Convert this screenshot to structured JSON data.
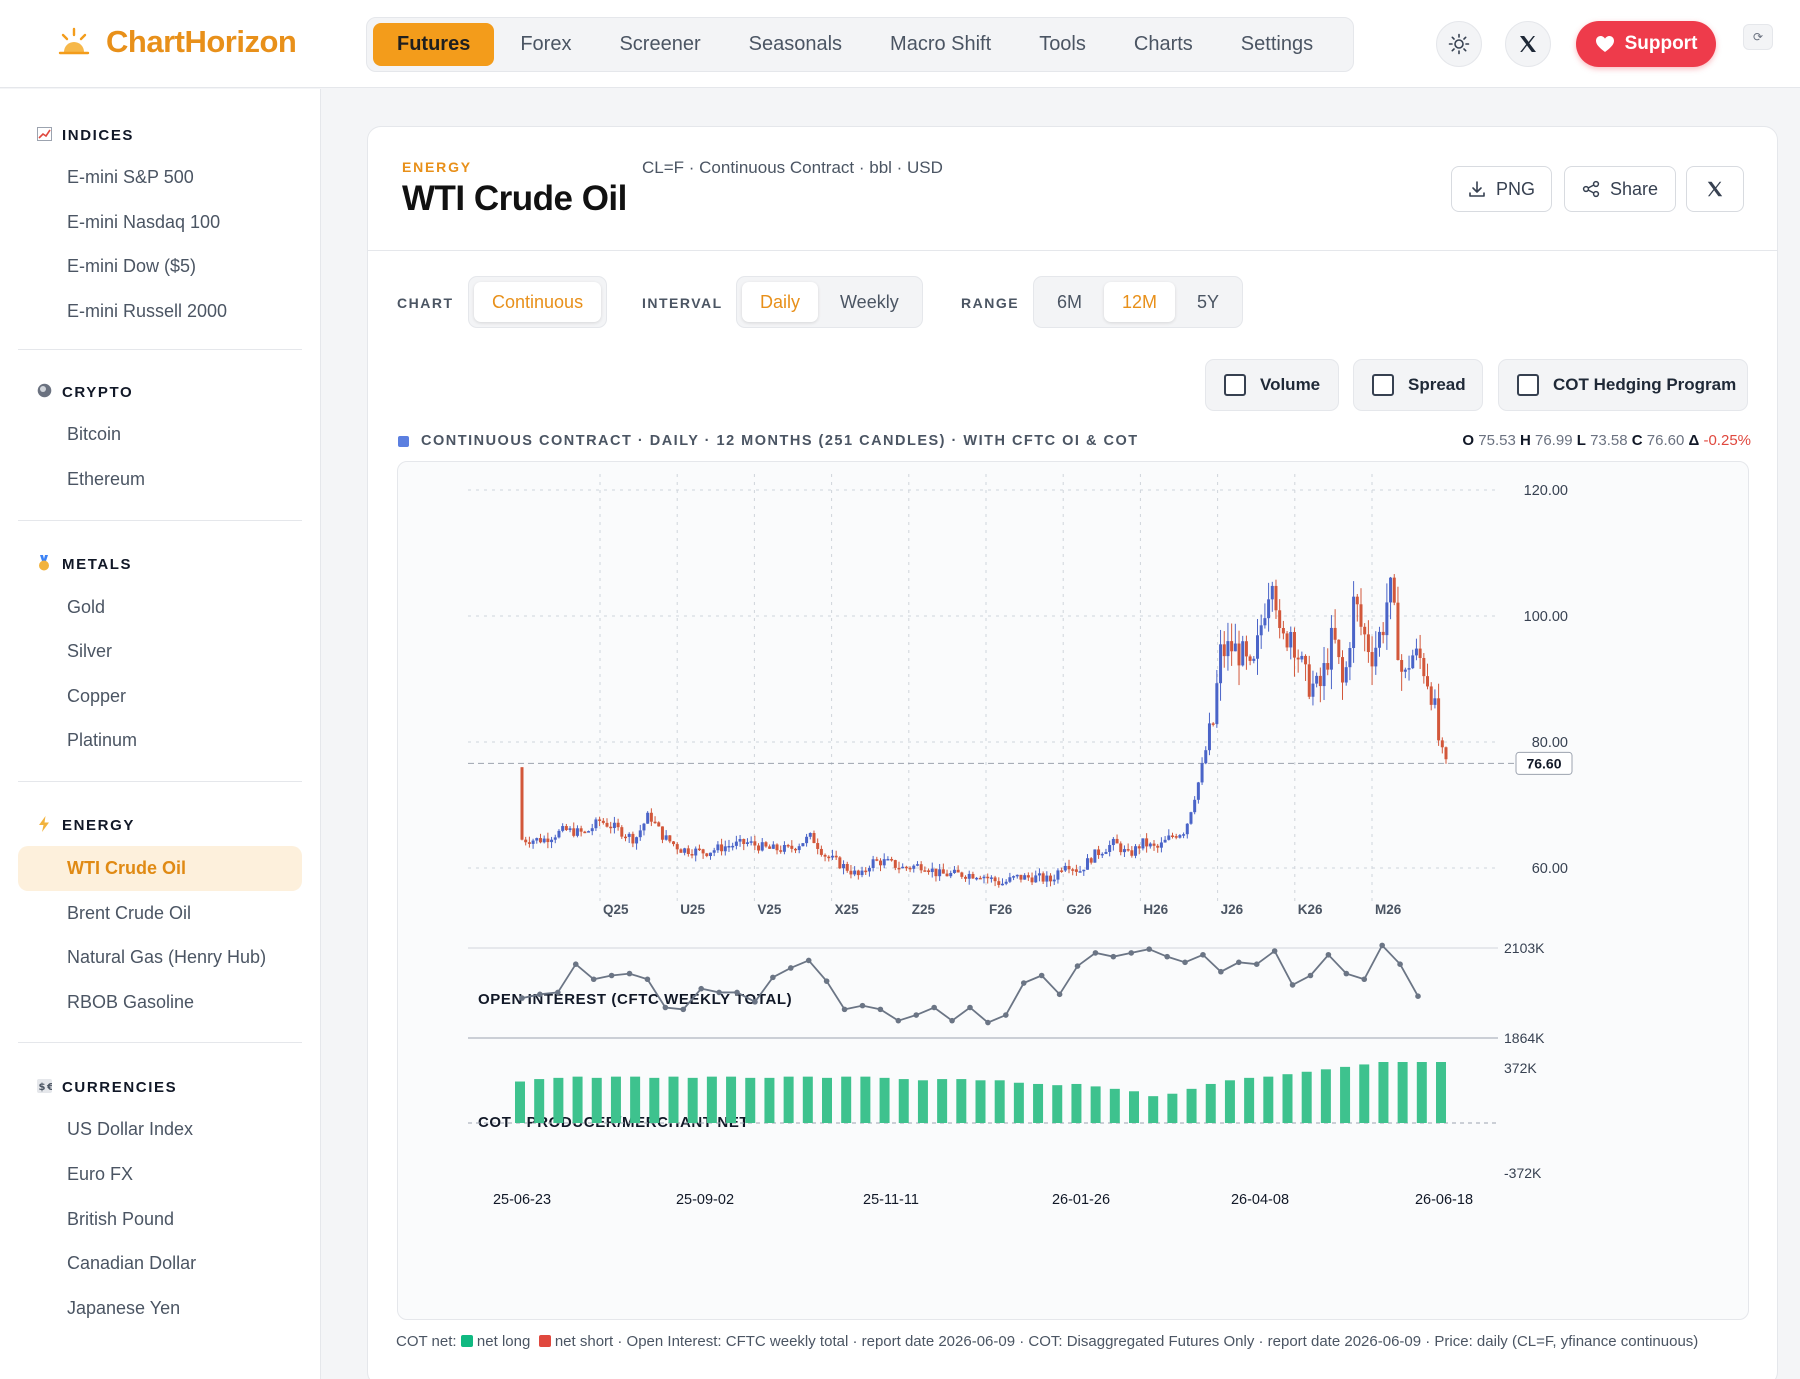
{
  "app": {
    "name": "ChartHorizon"
  },
  "nav": {
    "items": [
      "Futures",
      "Forex",
      "Screener",
      "Seasonals",
      "Macro Shift",
      "Tools",
      "Charts",
      "Settings"
    ],
    "active": "Futures"
  },
  "header": {
    "support_label": "Support"
  },
  "sidebar": {
    "sections": [
      {
        "title": "INDICES",
        "icon": "chart-icon",
        "items": [
          "E-mini S&P 500",
          "E-mini Nasdaq 100",
          "E-mini Dow ($5)",
          "E-mini Russell 2000"
        ]
      },
      {
        "title": "CRYPTO",
        "icon": "coin-icon",
        "items": [
          "Bitcoin",
          "Ethereum"
        ]
      },
      {
        "title": "METALS",
        "icon": "medal-icon",
        "items": [
          "Gold",
          "Silver",
          "Copper",
          "Platinum"
        ]
      },
      {
        "title": "ENERGY",
        "icon": "bolt-icon",
        "items": [
          "WTI Crude Oil",
          "Brent Crude Oil",
          "Natural Gas (Henry Hub)",
          "RBOB Gasoline"
        ],
        "active": "WTI Crude Oil"
      },
      {
        "title": "CURRENCIES",
        "icon": "exchange-icon",
        "items": [
          "US Dollar Index",
          "Euro FX",
          "British Pound",
          "Canadian Dollar",
          "Japanese Yen"
        ]
      }
    ]
  },
  "instrument": {
    "category": "ENERGY",
    "name": "WTI Crude Oil",
    "subtitle": "CL=F · Continuous Contract · bbl · USD"
  },
  "actions": {
    "png": "PNG",
    "share": "Share"
  },
  "controls": {
    "chart_label": "CHART",
    "chart_options": [
      "Continuous"
    ],
    "chart_selected": "Continuous",
    "interval_label": "INTERVAL",
    "interval_options": [
      "Daily",
      "Weekly"
    ],
    "interval_selected": "Daily",
    "range_label": "RANGE",
    "range_options": [
      "6M",
      "12M",
      "5Y"
    ],
    "range_selected": "12M",
    "toggles": [
      {
        "label": "Volume",
        "checked": false
      },
      {
        "label": "Spread",
        "checked": false
      },
      {
        "label": "COT Hedging Program",
        "checked": false
      }
    ]
  },
  "legend": {
    "text": "CONTINUOUS CONTRACT · DAILY · 12 MONTHS (251 CANDLES) · WITH CFTC OI & COT",
    "color": "#5b7fe0"
  },
  "ohlc": {
    "o_label": "O",
    "o": "75.53",
    "h_label": "H",
    "h": "76.99",
    "l_label": "L",
    "l": "73.58",
    "c_label": "C",
    "c": "76.60",
    "d_label": "Δ",
    "change": "-0.25%"
  },
  "chart_data": [
    {
      "type": "candlestick",
      "y_ticks": [
        "120.00",
        "100.00",
        "80.00",
        "60.00"
      ],
      "ylim": [
        56,
        123
      ],
      "last_price": "76.60",
      "contract_labels": [
        "Q25",
        "U25",
        "V25",
        "X25",
        "Z25",
        "F26",
        "G26",
        "H26",
        "J26",
        "K26",
        "M26"
      ],
      "close_path": [
        {
          "x": 0,
          "y": 76
        },
        {
          "x": 1,
          "y": 64.5
        },
        {
          "x": 6,
          "y": 64.5
        },
        {
          "x": 12,
          "y": 66
        },
        {
          "x": 18,
          "y": 65.5
        },
        {
          "x": 22,
          "y": 67.5
        },
        {
          "x": 26,
          "y": 66.5
        },
        {
          "x": 32,
          "y": 64.5
        },
        {
          "x": 36,
          "y": 68.5
        },
        {
          "x": 40,
          "y": 65
        },
        {
          "x": 45,
          "y": 63
        },
        {
          "x": 52,
          "y": 62.5
        },
        {
          "x": 58,
          "y": 63.5
        },
        {
          "x": 64,
          "y": 64
        },
        {
          "x": 70,
          "y": 63
        },
        {
          "x": 76,
          "y": 63
        },
        {
          "x": 82,
          "y": 65
        },
        {
          "x": 86,
          "y": 62
        },
        {
          "x": 92,
          "y": 60
        },
        {
          "x": 96,
          "y": 58.5
        },
        {
          "x": 99,
          "y": 61
        },
        {
          "x": 103,
          "y": 61
        },
        {
          "x": 108,
          "y": 60
        },
        {
          "x": 114,
          "y": 60.5
        },
        {
          "x": 118,
          "y": 59
        },
        {
          "x": 124,
          "y": 59
        },
        {
          "x": 130,
          "y": 59
        },
        {
          "x": 136,
          "y": 57.5
        },
        {
          "x": 140,
          "y": 58.5
        },
        {
          "x": 146,
          "y": 58.5
        },
        {
          "x": 150,
          "y": 58
        },
        {
          "x": 154,
          "y": 61
        },
        {
          "x": 158,
          "y": 59.5
        },
        {
          "x": 162,
          "y": 62
        },
        {
          "x": 168,
          "y": 64
        },
        {
          "x": 172,
          "y": 62
        },
        {
          "x": 176,
          "y": 64
        },
        {
          "x": 180,
          "y": 63
        },
        {
          "x": 184,
          "y": 65
        },
        {
          "x": 188,
          "y": 66
        },
        {
          "x": 192,
          "y": 74
        },
        {
          "x": 194,
          "y": 79
        },
        {
          "x": 196,
          "y": 83
        },
        {
          "x": 198,
          "y": 94
        },
        {
          "x": 201,
          "y": 95
        },
        {
          "x": 204,
          "y": 94
        },
        {
          "x": 207,
          "y": 90
        },
        {
          "x": 210,
          "y": 100
        },
        {
          "x": 213,
          "y": 108
        },
        {
          "x": 215,
          "y": 95
        },
        {
          "x": 218,
          "y": 98
        },
        {
          "x": 222,
          "y": 90
        },
        {
          "x": 226,
          "y": 88
        },
        {
          "x": 230,
          "y": 97
        },
        {
          "x": 233,
          "y": 88
        },
        {
          "x": 236,
          "y": 103
        },
        {
          "x": 238,
          "y": 98
        },
        {
          "x": 241,
          "y": 94
        },
        {
          "x": 244,
          "y": 98
        },
        {
          "x": 246,
          "y": 105
        },
        {
          "x": 248,
          "y": 97
        },
        {
          "x": 250,
          "y": 89
        },
        {
          "x": 252,
          "y": 94
        },
        {
          "x": 255,
          "y": 93
        },
        {
          "x": 258,
          "y": 88
        },
        {
          "x": 260,
          "y": 80
        },
        {
          "x": 262,
          "y": 76.6
        }
      ],
      "x_extent": [
        0,
        262
      ]
    },
    {
      "type": "line",
      "title": "OPEN INTEREST (CFTC WEEKLY TOTAL)",
      "y_ticks": [
        "2103K",
        "1864K"
      ],
      "ylim": [
        1864,
        2103
      ],
      "values": [
        1970,
        1980,
        1985,
        2060,
        2020,
        2030,
        2035,
        2020,
        1945,
        1940,
        1995,
        1985,
        1985,
        1960,
        2025,
        2050,
        2070,
        2015,
        1940,
        1950,
        1940,
        1910,
        1925,
        1945,
        1910,
        1945,
        1905,
        1925,
        2010,
        2030,
        1980,
        2055,
        2090,
        2080,
        2090,
        2100,
        2080,
        2065,
        2085,
        2040,
        2065,
        2060,
        2095,
        2005,
        2030,
        2085,
        2035,
        2020,
        2110,
        2060,
        1975
      ]
    },
    {
      "type": "bar",
      "title": "COT · PRODUCER/MERCHANT NET",
      "y_ticks": [
        "372K",
        "-372K"
      ],
      "ylim": [
        -372,
        372
      ],
      "values": [
        170,
        180,
        185,
        190,
        185,
        190,
        190,
        185,
        190,
        185,
        190,
        190,
        185,
        185,
        190,
        190,
        185,
        190,
        190,
        185,
        180,
        175,
        180,
        180,
        175,
        175,
        165,
        160,
        155,
        160,
        150,
        140,
        130,
        110,
        120,
        140,
        160,
        175,
        185,
        190,
        200,
        210,
        220,
        230,
        240,
        250,
        250,
        250,
        250
      ]
    }
  ],
  "x_axis": {
    "labels": [
      "25-06-23",
      "25-09-02",
      "25-11-11",
      "26-01-26",
      "26-04-08",
      "26-06-18"
    ]
  },
  "footnote": {
    "prefix": "COT net: ",
    "long": "net long",
    "short": "net short",
    "rest": " · Open Interest: CFTC weekly total · report date 2026-06-09 · COT: Disaggregated Futures Only · report date 2026-06-09 · Price: daily (CL=F, yfinance continuous)"
  },
  "colors": {
    "accent": "#f39c1b",
    "up": "#4a64c8",
    "down": "#d2573a",
    "cot": "#3ec28e",
    "oi": "#6b7585",
    "support": "#ee3b4b"
  }
}
